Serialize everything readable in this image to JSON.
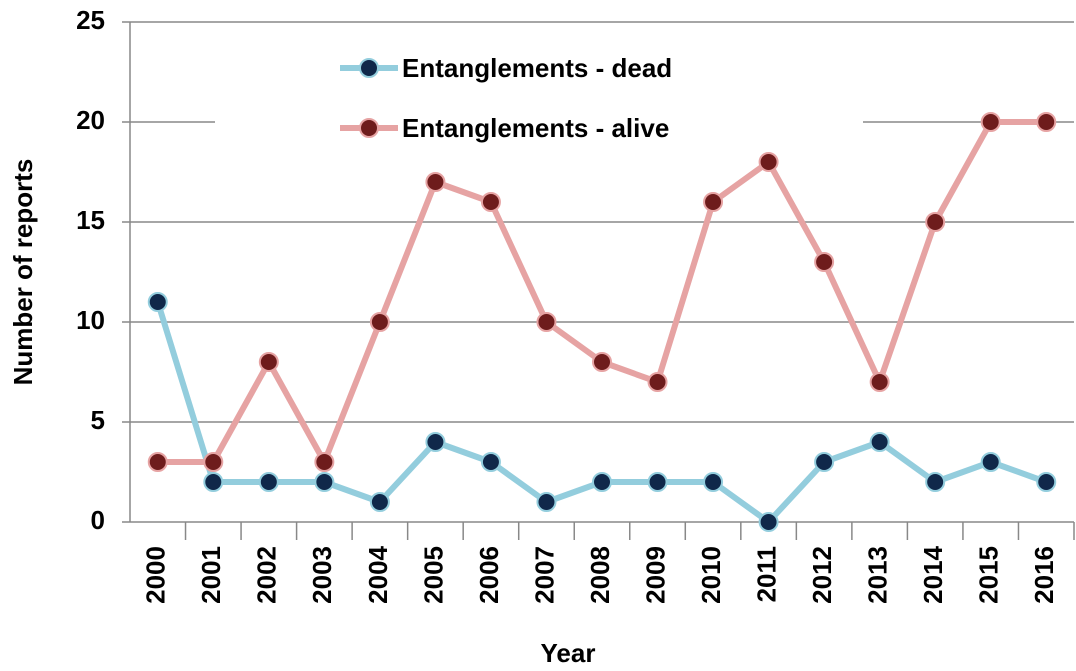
{
  "chart_data": {
    "type": "line",
    "x_label": "Year",
    "y_label": "Number of reports",
    "categories": [
      "2000",
      "2001",
      "2002",
      "2003",
      "2004",
      "2005",
      "2006",
      "2007",
      "2008",
      "2009",
      "2010",
      "2011",
      "2012",
      "2013",
      "2014",
      "2015",
      "2016"
    ],
    "series": [
      {
        "name": "Entanglements - dead",
        "color": "#93cddd",
        "marker_color": "#10284a",
        "values": [
          11,
          2,
          2,
          2,
          1,
          4,
          3,
          1,
          2,
          2,
          2,
          0,
          3,
          4,
          2,
          3,
          2
        ]
      },
      {
        "name": "Entanglements - alive",
        "color": "#e6a3a3",
        "marker_color": "#6e1c1c",
        "values": [
          3,
          3,
          8,
          3,
          10,
          17,
          16,
          10,
          8,
          7,
          16,
          18,
          13,
          7,
          15,
          20,
          20
        ]
      }
    ],
    "ylim": [
      0,
      25
    ],
    "yticks": [
      0,
      5,
      10,
      15,
      20,
      25
    ],
    "grid": true,
    "legend": "top"
  }
}
